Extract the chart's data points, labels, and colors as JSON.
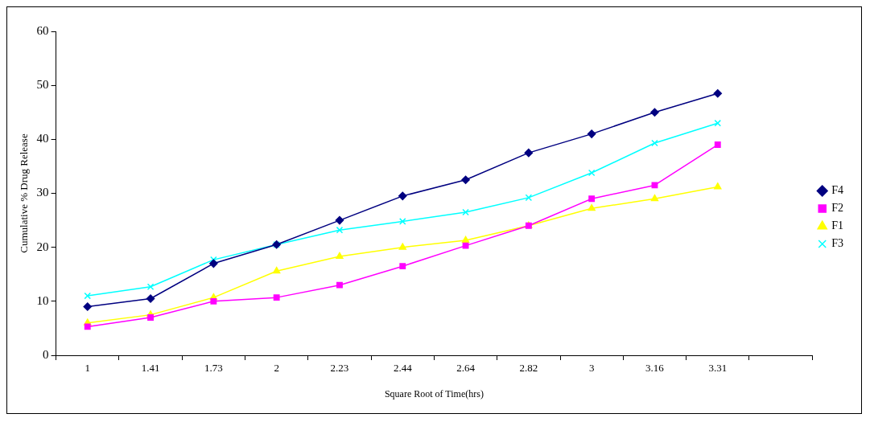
{
  "chart_data": {
    "type": "line",
    "xlabel": "Square Root of Time(hrs)",
    "ylabel": "Cumulative % Drug Release",
    "categories": [
      "1",
      "1.41",
      "1.73",
      "2",
      "2.23",
      "2.44",
      "2.64",
      "2.82",
      "3",
      "3.16",
      "3.31",
      null
    ],
    "ylim": [
      0,
      60
    ],
    "yticks": [
      0,
      10,
      20,
      30,
      40,
      50,
      60
    ],
    "grid": false,
    "legend": "right",
    "line_style": "solid",
    "series": [
      {
        "name": "F4",
        "color": "#000080",
        "marker": "diamond",
        "values": [
          9,
          10.5,
          17,
          20.5,
          25,
          29.5,
          32.5,
          37.5,
          41,
          45,
          48.5,
          null
        ]
      },
      {
        "name": "F2",
        "color": "#ff00ff",
        "marker": "square",
        "values": [
          5.3,
          7,
          10,
          10.7,
          13,
          16.5,
          20.3,
          24,
          29,
          31.5,
          39,
          null
        ]
      },
      {
        "name": "F1",
        "color": "#ffff00",
        "marker": "triangle",
        "values": [
          6,
          7.5,
          10.7,
          15.6,
          18.3,
          20,
          21.3,
          24,
          27.2,
          29,
          31.2,
          null
        ]
      },
      {
        "name": "F3",
        "color": "#00ffff",
        "marker": "cross",
        "values": [
          11,
          12.7,
          17.7,
          20.5,
          23.2,
          24.8,
          26.5,
          29.2,
          33.8,
          39.3,
          43,
          null
        ]
      }
    ]
  }
}
